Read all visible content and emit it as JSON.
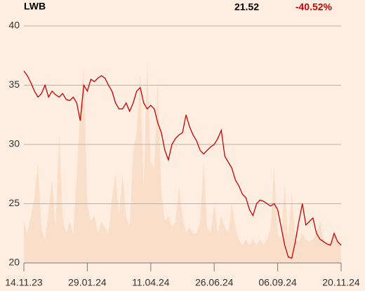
{
  "chart_data": {
    "type": "line",
    "ticker": "LWB",
    "price": "21.52",
    "change": "-40.52%",
    "xlim": [
      0,
      90
    ],
    "xticks": [
      {
        "value": 0,
        "label": "14.11.23"
      },
      {
        "value": 18,
        "label": "29.01.24"
      },
      {
        "value": 36,
        "label": "11.04.24"
      },
      {
        "value": 54,
        "label": "26.06.24"
      },
      {
        "value": 72,
        "label": "06.09.24"
      },
      {
        "value": 90,
        "label": "20.11.24"
      }
    ],
    "ylim": [
      20,
      40
    ],
    "yticks": [
      20,
      25,
      30,
      35,
      40
    ],
    "grid": true,
    "series": [
      {
        "kind": "line",
        "color": "#cc0000",
        "values": [
          36.2,
          35.8,
          35.2,
          34.5,
          34.0,
          34.3,
          35.0,
          34.0,
          34.5,
          34.2,
          34.0,
          34.3,
          33.8,
          33.7,
          34.0,
          33.5,
          32.0,
          35.0,
          34.5,
          35.5,
          35.3,
          35.6,
          35.8,
          35.6,
          35.0,
          34.5,
          33.5,
          33.0,
          33.0,
          33.5,
          32.8,
          33.5,
          34.5,
          34.8,
          33.5,
          33.0,
          33.3,
          33.0,
          31.8,
          31.0,
          29.5,
          28.7,
          30.0,
          30.5,
          30.8,
          31.0,
          32.5,
          31.5,
          30.8,
          30.3,
          29.5,
          29.2,
          29.5,
          29.8,
          30.0,
          30.5,
          31.2,
          29.0,
          28.5,
          28.0,
          27.0,
          26.5,
          25.8,
          25.5,
          24.5,
          24.0,
          25.0,
          25.3,
          25.2,
          25.0,
          24.8,
          25.0,
          24.5,
          23.0,
          21.5,
          20.5,
          20.4,
          21.8,
          23.5,
          25.0,
          23.2,
          23.5,
          23.8,
          22.5,
          22.0,
          21.8,
          21.6,
          21.5,
          22.5,
          21.8,
          21.5
        ]
      },
      {
        "kind": "area",
        "color": "#f8dcc4",
        "values": [
          23.5,
          22.5,
          24,
          25.5,
          28.5,
          23,
          22,
          24.5,
          27,
          23,
          31,
          24,
          22.5,
          23.5,
          22.5,
          27.5,
          33,
          36.5,
          25,
          23.5,
          24,
          22.5,
          23.5,
          23,
          22.5,
          25.5,
          27.5,
          24,
          27.5,
          24,
          23,
          29.5,
          31,
          36,
          26,
          37,
          28.5,
          28,
          35.5,
          26,
          23.5,
          24,
          23,
          23.5,
          26.5,
          24,
          22.5,
          23,
          22.5,
          22.5,
          23.5,
          28.5,
          23,
          22.5,
          25,
          22.5,
          24,
          23,
          22.5,
          25,
          23,
          22,
          21.5,
          22,
          21.5,
          22,
          21.5,
          22,
          21.5,
          22,
          23,
          28,
          22.5,
          22,
          26.5,
          22,
          26,
          22,
          21.8,
          22.5,
          22,
          21.8,
          22,
          22.5,
          23.5,
          22,
          21.5,
          21.8,
          22.5,
          21.8,
          21.5
        ]
      }
    ]
  }
}
